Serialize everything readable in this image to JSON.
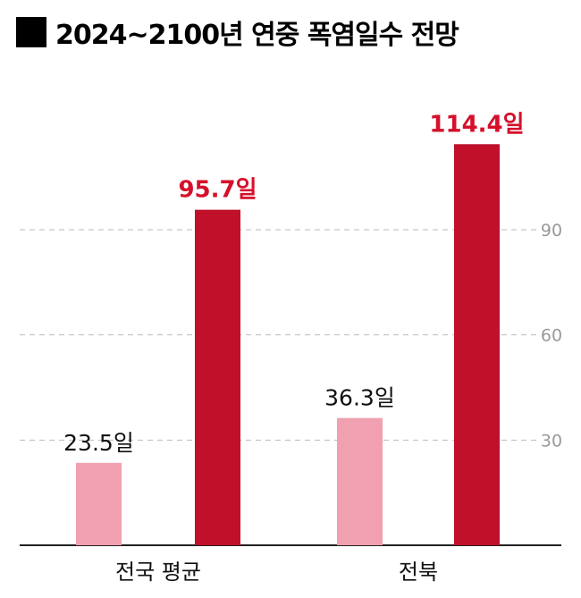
{
  "chart_data": {
    "type": "bar",
    "title": "2024~2100년 연중 폭염일수 전망",
    "categories": [
      "전국 평균",
      "전북"
    ],
    "series": [
      {
        "values": [
          23.5,
          36.3
        ],
        "labels": [
          "23.5일",
          "36.3일"
        ]
      },
      {
        "values": [
          95.7,
          114.4
        ],
        "labels": [
          "95.7일",
          "114.4일"
        ]
      }
    ],
    "y_ticks": [
      30,
      60,
      90
    ],
    "ylim": [
      0,
      120
    ],
    "grid": true,
    "colors": {
      "series_0": "#f0a0b0",
      "series_1": "#c0102a",
      "label_0": "#111111",
      "label_1": "#d5102a",
      "grid": "#bbbbbb",
      "axis": "#222222",
      "tick": "#999999"
    }
  }
}
